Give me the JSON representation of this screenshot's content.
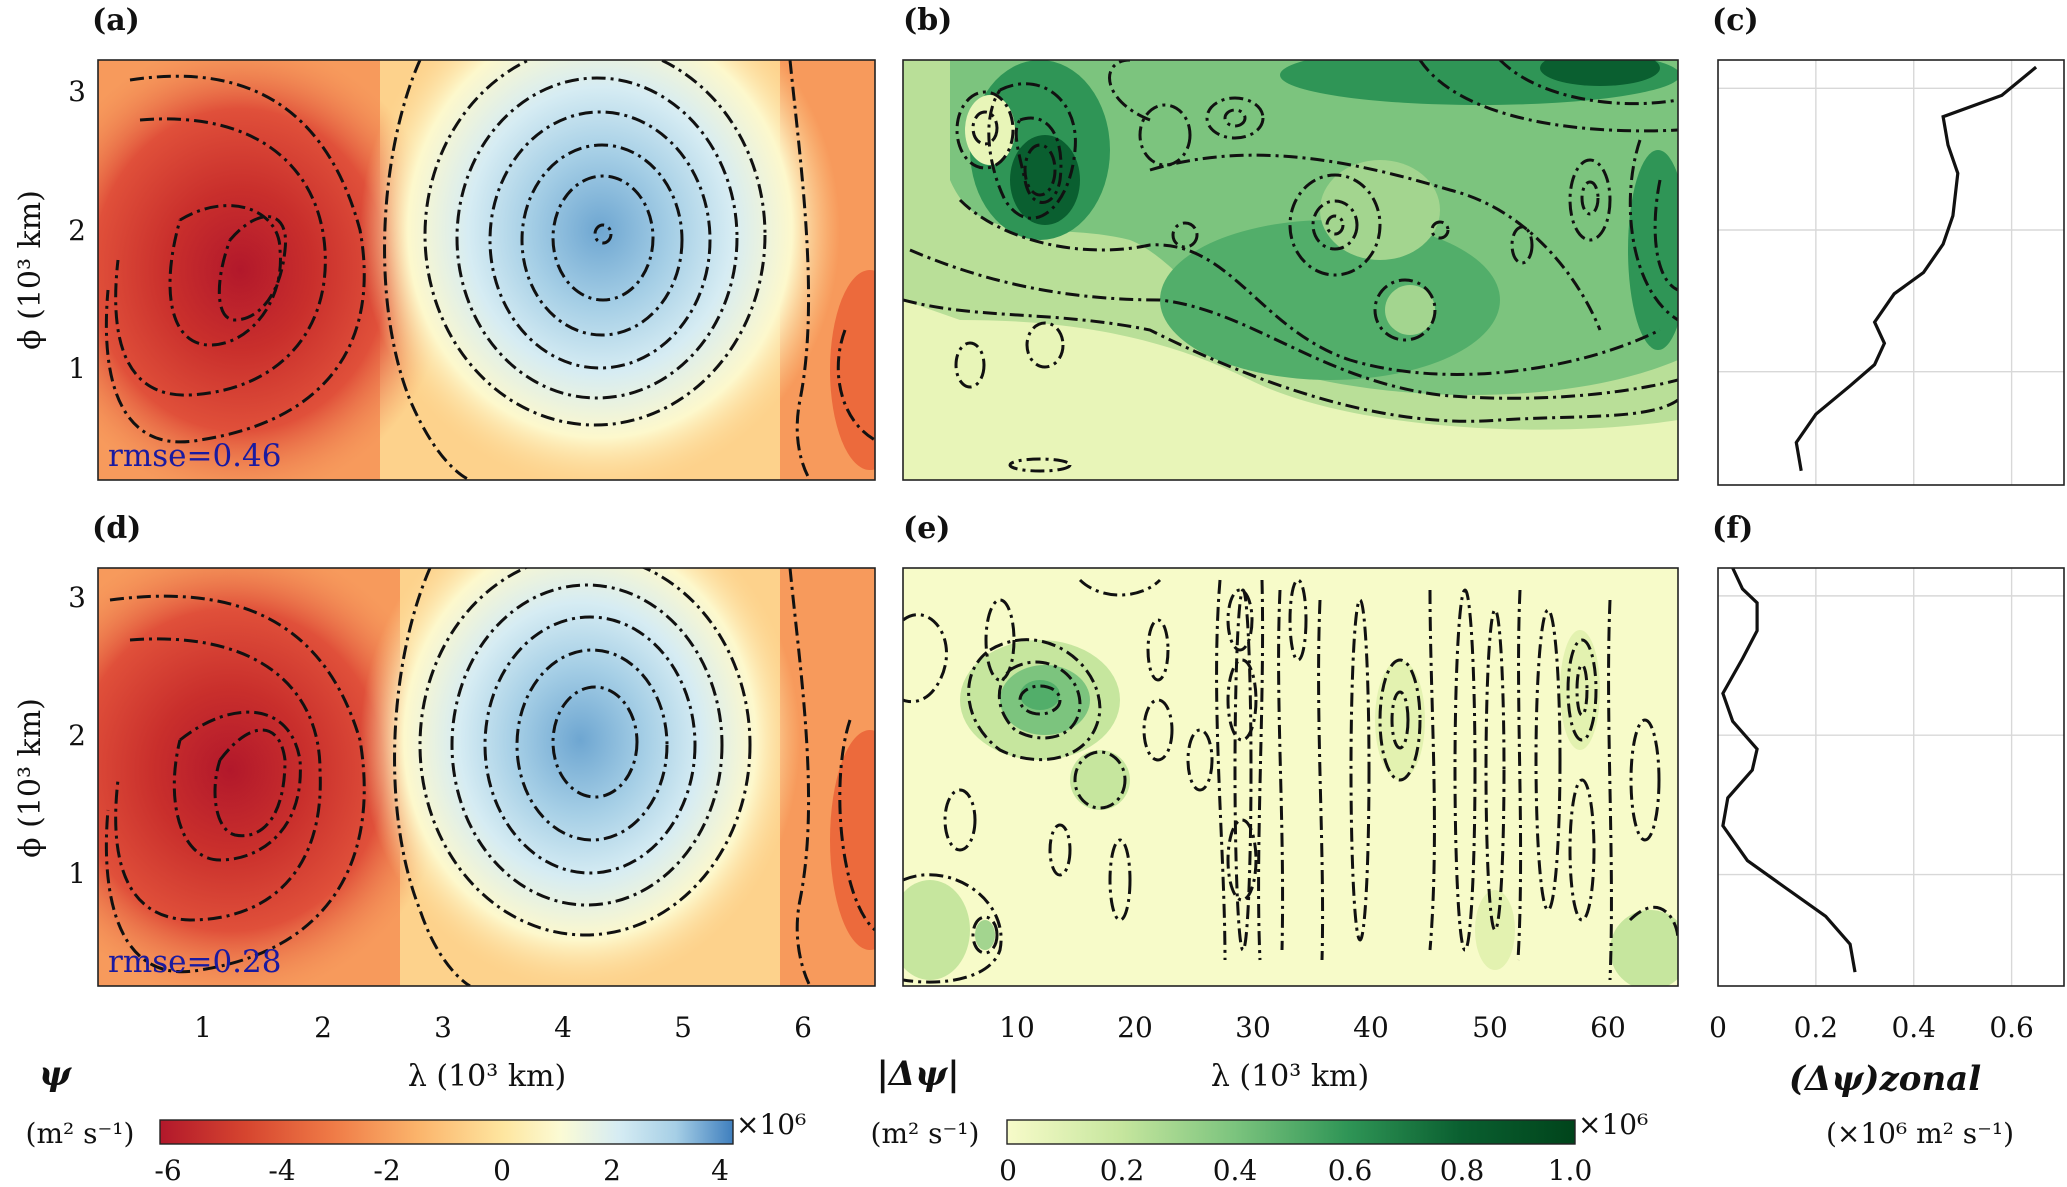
{
  "panels": {
    "a": {
      "label": "(a)",
      "rmse": "rmse=0.46"
    },
    "b": {
      "label": "(b)"
    },
    "c": {
      "label": "(c)"
    },
    "d": {
      "label": "(d)",
      "rmse": "rmse=0.28"
    },
    "e": {
      "label": "(e)"
    },
    "f": {
      "label": "(f)"
    }
  },
  "axes": {
    "ylabel": "ϕ (10³ km)",
    "xlabel_left": "λ (10³ km)",
    "xlabel_mid": "λ (10³ km)",
    "yticks": [
      "1",
      "2",
      "3"
    ],
    "xticks_left": [
      "1",
      "2",
      "3",
      "4",
      "5",
      "6"
    ],
    "xticks_mid": [
      "10",
      "20",
      "30",
      "40",
      "50",
      "60"
    ],
    "xticks_right": [
      "0",
      "0.2",
      "0.4",
      "0.6"
    ],
    "xlabel_right": "(Δψ)zonal",
    "xlabel_right_unit": "(×10⁶ m² s⁻¹)"
  },
  "colorbars": {
    "psi": {
      "title": "ψ",
      "unit": "(m² s⁻¹)",
      "multiplier": "×10⁶",
      "ticks": [
        "-6",
        "-4",
        "-2",
        "0",
        "2",
        "4"
      ],
      "colors": [
        "#b2182b",
        "#d6452f",
        "#ef7a46",
        "#fbb46b",
        "#fee6a0",
        "#fbfbd5",
        "#d6ecf3",
        "#a6cfe6",
        "#6ea6d1",
        "#3f7fbe"
      ]
    },
    "dpsi": {
      "title": "|Δψ|",
      "unit": "(m² s⁻¹)",
      "multiplier": "×10⁶",
      "ticks": [
        "0",
        "0.2",
        "0.4",
        "0.6",
        "0.8",
        "1.0"
      ],
      "colors": [
        "#f7fbc9",
        "#e3f2b0",
        "#c6e69e",
        "#a3d58f",
        "#7cc47e",
        "#52ae6a",
        "#2f9556",
        "#177a42",
        "#0a5f30",
        "#00441b"
      ]
    }
  },
  "chart_data": [
    {
      "type": "heatmap",
      "panel": "(a)",
      "variable": "ψ",
      "rmse": 0.46,
      "x_range": [
        0,
        6.5
      ],
      "y_range": [
        0.2,
        3.2
      ],
      "features": [
        {
          "kind": "min",
          "x": 1.3,
          "y": 1.6,
          "value": -6
        },
        {
          "kind": "max",
          "x": 4.2,
          "y": 1.95,
          "value": 4
        }
      ]
    },
    {
      "type": "heatmap",
      "panel": "(b)",
      "variable": "|Δψ|",
      "x_range": [
        0,
        65
      ],
      "y_range": [
        0.2,
        3.2
      ]
    },
    {
      "type": "line",
      "panel": "(c)",
      "xlabel": "(Δψ)zonal",
      "x": [
        0.17,
        0.16,
        0.2,
        0.27,
        0.32,
        0.34,
        0.32,
        0.36,
        0.42,
        0.46,
        0.48,
        0.49,
        0.47,
        0.46,
        0.58,
        0.65
      ],
      "y": [
        0.3,
        0.5,
        0.7,
        0.9,
        1.05,
        1.2,
        1.35,
        1.55,
        1.7,
        1.9,
        2.1,
        2.4,
        2.6,
        2.8,
        2.95,
        3.15
      ],
      "xlim": [
        0,
        0.7
      ]
    },
    {
      "type": "heatmap",
      "panel": "(d)",
      "variable": "ψ",
      "rmse": 0.28,
      "x_range": [
        0,
        6.5
      ],
      "y_range": [
        0.2,
        3.2
      ],
      "features": [
        {
          "kind": "min",
          "x": 1.3,
          "y": 1.7,
          "value": -6
        },
        {
          "kind": "max",
          "x": 4.1,
          "y": 1.9,
          "value": 4
        }
      ]
    },
    {
      "type": "heatmap",
      "panel": "(e)",
      "variable": "|Δψ|",
      "x_range": [
        0,
        65
      ],
      "y_range": [
        0.2,
        3.2
      ]
    },
    {
      "type": "line",
      "panel": "(f)",
      "xlabel": "(Δψ)zonal",
      "x": [
        0.28,
        0.27,
        0.22,
        0.14,
        0.06,
        0.01,
        0.02,
        0.07,
        0.08,
        0.03,
        0.01,
        0.05,
        0.08,
        0.08,
        0.05,
        0.03
      ],
      "y": [
        0.3,
        0.5,
        0.7,
        0.9,
        1.1,
        1.35,
        1.55,
        1.75,
        1.9,
        2.1,
        2.3,
        2.55,
        2.75,
        2.95,
        3.05,
        3.2
      ],
      "xlim": [
        0,
        0.7
      ]
    }
  ]
}
